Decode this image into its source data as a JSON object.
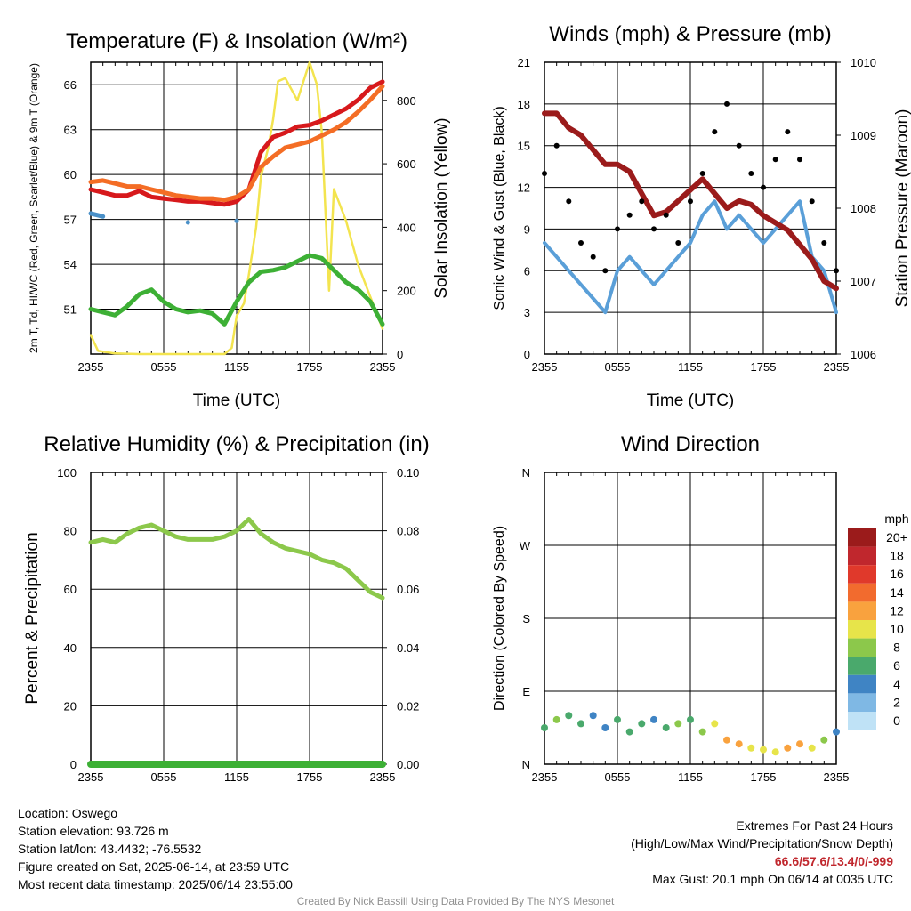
{
  "chart_data": [
    {
      "type": "line",
      "title": "Temperature (F) & Insolation (W/m²)",
      "xlabel": "Time (UTC)",
      "ylabel": "2m T, Td, HI/WC (Red, Green, Scarlet/Blue) & 9m T (Orange)",
      "ylabel_right": "Solar Insolation (Yellow)",
      "x_ticks": [
        "2355",
        "0555",
        "1155",
        "1755",
        "2355"
      ],
      "ylim": [
        48,
        67.5
      ],
      "y_ticks": [
        51,
        54,
        57,
        60,
        63,
        66
      ],
      "ylim_right": [
        0,
        920
      ],
      "y_ticks_right": [
        0,
        200,
        400,
        600,
        800
      ],
      "x": [
        0,
        1,
        2,
        3,
        4,
        5,
        6,
        7,
        8,
        9,
        10,
        11,
        12,
        13,
        14,
        15,
        16,
        17,
        18,
        19,
        20,
        21,
        22,
        23,
        24
      ],
      "series": [
        {
          "name": "2m T",
          "color": "#d7191c",
          "values": [
            59.0,
            58.8,
            58.6,
            58.6,
            58.9,
            58.5,
            58.4,
            58.3,
            58.2,
            58.2,
            58.1,
            58.0,
            58.2,
            59.0,
            61.5,
            62.5,
            62.8,
            63.2,
            63.3,
            63.6,
            64.0,
            64.4,
            65.0,
            65.8,
            66.2
          ]
        },
        {
          "name": "9m T",
          "color": "#f46d25",
          "values": [
            59.5,
            59.6,
            59.4,
            59.2,
            59.2,
            59.0,
            58.8,
            58.6,
            58.5,
            58.4,
            58.4,
            58.3,
            58.5,
            59.0,
            60.5,
            61.2,
            61.8,
            62.0,
            62.2,
            62.6,
            63.0,
            63.5,
            64.2,
            65.0,
            65.9
          ]
        },
        {
          "name": "Td",
          "color": "#3db035",
          "values": [
            51.0,
            50.8,
            50.6,
            51.2,
            52.0,
            52.3,
            51.5,
            51.0,
            50.8,
            50.9,
            50.7,
            50.0,
            51.5,
            52.8,
            53.5,
            53.6,
            53.8,
            54.2,
            54.6,
            54.4,
            53.6,
            52.8,
            52.3,
            51.5,
            50.0
          ]
        },
        {
          "name": "HI/WC",
          "color": "#4a90c8",
          "values": [
            57.4,
            57.2,
            null,
            null,
            null,
            null,
            null,
            null,
            56.8,
            null,
            null,
            null,
            56.9,
            null,
            null,
            null,
            null,
            null,
            null,
            null,
            null,
            null,
            null,
            null,
            null
          ]
        }
      ],
      "insolation": {
        "name": "Solar Insolation",
        "color": "#f3e44f",
        "x": [
          0,
          0.6,
          2,
          4,
          6,
          8,
          10,
          11,
          11.6,
          12,
          12.6,
          13,
          13.6,
          14,
          14.6,
          15,
          15.4,
          16,
          17,
          18,
          18.6,
          19,
          19.6,
          20,
          21,
          22,
          23,
          24
        ],
        "values": [
          60,
          10,
          2,
          0,
          0,
          0,
          0,
          0,
          20,
          120,
          160,
          250,
          400,
          560,
          650,
          740,
          860,
          870,
          800,
          920,
          850,
          700,
          200,
          520,
          420,
          280,
          180,
          80
        ]
      }
    },
    {
      "type": "line",
      "title": "Winds (mph) & Pressure (mb)",
      "xlabel": "Time (UTC)",
      "ylabel": "Sonic Wind & Gust (Blue, Black)",
      "ylabel_right": "Station Pressure (Maroon)",
      "x_ticks": [
        "2355",
        "0555",
        "1155",
        "1755",
        "2355"
      ],
      "ylim": [
        0,
        21
      ],
      "y_ticks": [
        0,
        3,
        6,
        9,
        12,
        15,
        18,
        21
      ],
      "ylim_right": [
        1006,
        1010
      ],
      "y_ticks_right": [
        1006,
        1007,
        1008,
        1009,
        1010
      ],
      "x": [
        0,
        1,
        2,
        3,
        4,
        5,
        6,
        7,
        8,
        9,
        10,
        11,
        12,
        13,
        14,
        15,
        16,
        17,
        18,
        19,
        20,
        21,
        22,
        23,
        24
      ],
      "series": [
        {
          "name": "Sonic Wind",
          "color": "#5a9fd8",
          "values": [
            8,
            7,
            6,
            5,
            4,
            3,
            6,
            7,
            6,
            5,
            6,
            7,
            8,
            10,
            11,
            9,
            10,
            9,
            8,
            9,
            10,
            11,
            7,
            6,
            3
          ]
        },
        {
          "name": "Gust",
          "color": "#000000",
          "values": [
            13,
            15,
            11,
            8,
            7,
            6,
            9,
            10,
            11,
            9,
            10,
            8,
            11,
            13,
            16,
            18,
            15,
            13,
            12,
            14,
            16,
            14,
            11,
            8,
            6
          ]
        },
        {
          "name": "Station Pressure",
          "color": "#9b1b1b",
          "axis": "right",
          "values": [
            1009.3,
            1009.3,
            1009.1,
            1009.0,
            1008.8,
            1008.6,
            1008.6,
            1008.5,
            1008.2,
            1007.9,
            1007.95,
            1008.1,
            1008.25,
            1008.4,
            1008.2,
            1008.0,
            1008.1,
            1008.05,
            1007.9,
            1007.8,
            1007.7,
            1007.5,
            1007.3,
            1007.0,
            1006.9
          ]
        }
      ]
    },
    {
      "type": "line",
      "title": "Relative Humidity (%) & Precipitation (in)",
      "xlabel": "",
      "ylabel": "Percent & Precipitation",
      "x_ticks": [
        "2355",
        "0555",
        "1155",
        "1755",
        "2355"
      ],
      "ylim": [
        0,
        100
      ],
      "y_ticks": [
        0,
        20,
        40,
        60,
        80,
        100
      ],
      "ylim_right": [
        0,
        0.1
      ],
      "y_ticks_right": [
        "0.00",
        "0.02",
        "0.04",
        "0.06",
        "0.08",
        "0.10"
      ],
      "x": [
        0,
        1,
        2,
        3,
        4,
        5,
        6,
        7,
        8,
        9,
        10,
        11,
        12,
        13,
        14,
        15,
        16,
        17,
        18,
        19,
        20,
        21,
        22,
        23,
        24
      ],
      "series": [
        {
          "name": "Relative Humidity",
          "color": "#8cc84b",
          "values": [
            76,
            77,
            76,
            79,
            81,
            82,
            80,
            78,
            77,
            77,
            77,
            78,
            80,
            84,
            79,
            76,
            74,
            73,
            72,
            70,
            69,
            67,
            63,
            59,
            57
          ]
        },
        {
          "name": "Precipitation",
          "color": "#3db035",
          "axis": "right",
          "values": [
            0,
            0,
            0,
            0,
            0,
            0,
            0,
            0,
            0,
            0,
            0,
            0,
            0,
            0,
            0,
            0,
            0,
            0,
            0,
            0,
            0,
            0,
            0,
            0,
            0
          ]
        }
      ]
    },
    {
      "type": "scatter",
      "title": "Wind Direction",
      "xlabel": "",
      "ylabel": "Direction (Colored By Speed)",
      "x_ticks": [
        "2355",
        "0555",
        "1155",
        "1755",
        "2355"
      ],
      "y_ticks": [
        "N",
        "E",
        "S",
        "W",
        "N"
      ],
      "ylim": [
        0,
        360
      ],
      "x": [
        0,
        1,
        2,
        3,
        4,
        5,
        6,
        7,
        8,
        9,
        10,
        11,
        12,
        13,
        14,
        15,
        16,
        17,
        18,
        19,
        20,
        21,
        22,
        23,
        24
      ],
      "direction_deg": [
        45,
        55,
        60,
        50,
        60,
        45,
        55,
        40,
        50,
        55,
        45,
        50,
        55,
        40,
        50,
        30,
        25,
        20,
        18,
        15,
        20,
        25,
        20,
        30,
        40
      ],
      "speed_mph": [
        6,
        7,
        6,
        5,
        4,
        4,
        5,
        6,
        5,
        4,
        6,
        7,
        6,
        8,
        9,
        11,
        12,
        10,
        9,
        10,
        11,
        12,
        10,
        7,
        4
      ],
      "legend": {
        "title": "mph",
        "labels": [
          "20+",
          "18",
          "16",
          "14",
          "12",
          "10",
          "8",
          "6",
          "4",
          "2",
          "0"
        ],
        "colors": [
          "#9b1b1b",
          "#c0272d",
          "#e0392b",
          "#f26b2e",
          "#f9a23e",
          "#e7e44a",
          "#8cc84b",
          "#4aa96c",
          "#3f84c4",
          "#7fb8e4",
          "#bfe2f6"
        ]
      }
    }
  ],
  "info": {
    "location": "Location: Oswego",
    "elevation": "Station elevation: 93.726 m",
    "latlon": "Station lat/lon: 43.4432; -76.5532",
    "created": "Figure created on Sat, 2025-06-14, at 23:59 UTC",
    "recent": "Most recent data timestamp: 2025/06/14 23:55:00"
  },
  "extremes": {
    "title": "Extremes For Past 24 Hours",
    "subtitle": "(High/Low/Max Wind/Precipitation/Snow Depth)",
    "values": "66.6/57.6/13.4/0/-999",
    "max_gust": "Max Gust: 20.1 mph On 06/14 at 0035 UTC"
  },
  "credit": "Created By Nick Bassill Using Data Provided By The NYS Mesonet"
}
